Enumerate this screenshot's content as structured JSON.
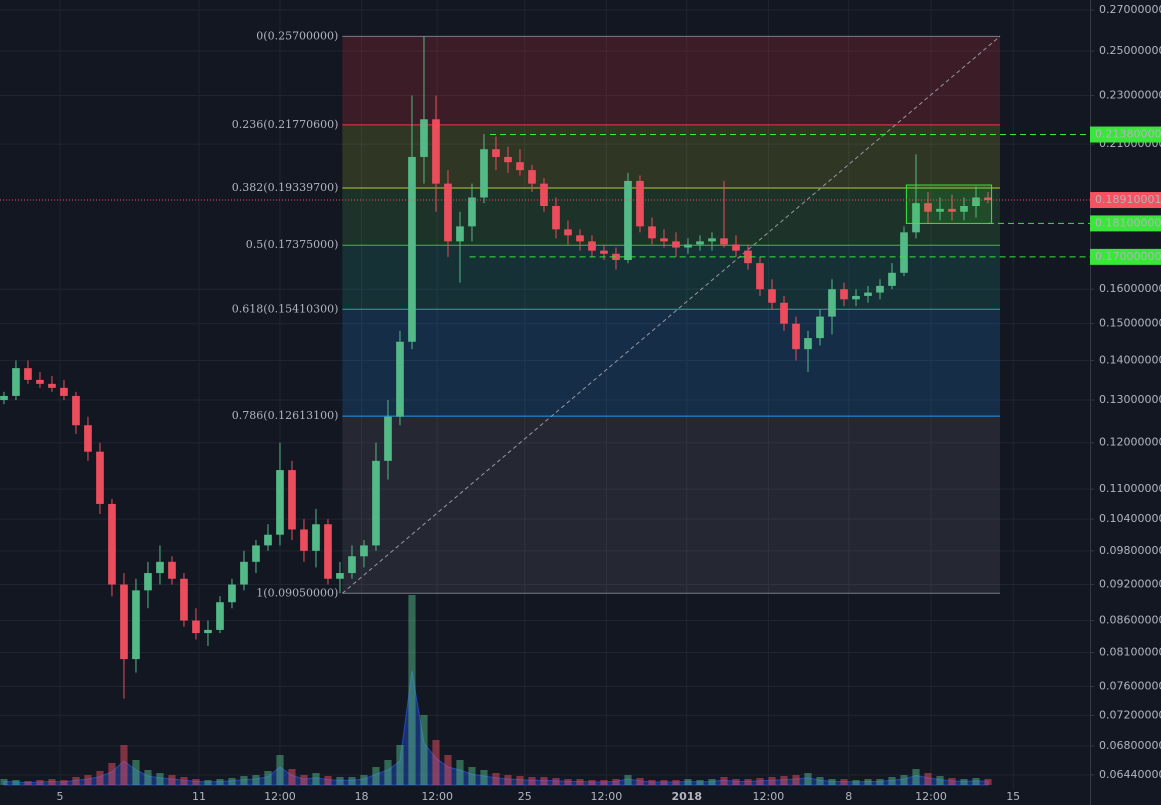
{
  "chart_data": {
    "type": "candlestick",
    "log_scale": true,
    "grid": true,
    "up_color": "#53b987",
    "down_color": "#eb4d5c",
    "ylim": [
      0.0626,
      0.2751
    ],
    "xlim": [
      -0.33,
      90.5
    ],
    "yticks": [
      {
        "value": 0.27,
        "label": "0.27000000"
      },
      {
        "value": 0.25,
        "label": "0.25000000"
      },
      {
        "value": 0.23,
        "label": "0.23000000"
      },
      {
        "value": 0.21,
        "label": "0.21000000"
      },
      {
        "value": 0.16,
        "label": "0.16000000"
      },
      {
        "value": 0.15,
        "label": "0.15000000"
      },
      {
        "value": 0.14,
        "label": "0.14000000"
      },
      {
        "value": 0.13,
        "label": "0.13000000"
      },
      {
        "value": 0.12,
        "label": "0.12000000"
      },
      {
        "value": 0.11,
        "label": "0.11000000"
      },
      {
        "value": 0.104,
        "label": "0.10400000"
      },
      {
        "value": 0.098,
        "label": "0.09800000"
      },
      {
        "value": 0.092,
        "label": "0.09200000"
      },
      {
        "value": 0.086,
        "label": "0.08600000"
      },
      {
        "value": 0.081,
        "label": "0.08100000"
      },
      {
        "value": 0.076,
        "label": "0.07600000"
      },
      {
        "value": 0.072,
        "label": "0.07200000"
      },
      {
        "value": 0.068,
        "label": "0.06800000"
      },
      {
        "value": 0.0644,
        "label": "0.06440000"
      }
    ],
    "xticks": [
      {
        "value": 4.67,
        "label": "5"
      },
      {
        "value": 16.25,
        "label": "11"
      },
      {
        "value": 23,
        "label": "12:00"
      },
      {
        "value": 29.8,
        "label": "18"
      },
      {
        "value": 36.1,
        "label": "12:00"
      },
      {
        "value": 43.4,
        "label": "25"
      },
      {
        "value": 50.2,
        "label": "12:00"
      },
      {
        "value": 56.9,
        "label": "2018",
        "bold": true
      },
      {
        "value": 63.7,
        "label": "12:00"
      },
      {
        "value": 70.4,
        "label": "8"
      },
      {
        "value": 77.25,
        "label": "12:00"
      },
      {
        "value": 84.1,
        "label": "15"
      }
    ],
    "open": [
      0.13,
      0.131,
      0.138,
      0.135,
      0.134,
      0.133,
      0.131,
      0.124,
      0.118,
      0.107,
      0.092,
      0.08,
      0.091,
      0.094,
      0.096,
      0.093,
      0.086,
      0.084,
      0.0845,
      0.089,
      0.092,
      0.096,
      0.099,
      0.101,
      0.114,
      0.102,
      0.098,
      0.103,
      0.093,
      0.094,
      0.097,
      0.099,
      0.116,
      0.126,
      0.145,
      0.205,
      0.22,
      0.195,
      0.175,
      0.18,
      0.19,
      0.208,
      0.205,
      0.203,
      0.2,
      0.195,
      0.187,
      0.179,
      0.177,
      0.175,
      0.172,
      0.171,
      0.169,
      0.196,
      0.18,
      0.176,
      0.175,
      0.173,
      0.174,
      0.175,
      0.176,
      0.174,
      0.172,
      0.168,
      0.16,
      0.156,
      0.15,
      0.143,
      0.146,
      0.152,
      0.16,
      0.157,
      0.158,
      0.159,
      0.161,
      0.165,
      0.178,
      0.188,
      0.185,
      0.186,
      0.185,
      0.187,
      0.19
    ],
    "high": [
      0.132,
      0.14,
      0.14,
      0.137,
      0.136,
      0.135,
      0.132,
      0.126,
      0.12,
      0.108,
      0.094,
      0.093,
      0.096,
      0.099,
      0.097,
      0.094,
      0.088,
      0.086,
      0.09,
      0.093,
      0.098,
      0.1,
      0.103,
      0.12,
      0.116,
      0.104,
      0.106,
      0.104,
      0.096,
      0.099,
      0.1,
      0.12,
      0.13,
      0.148,
      0.23,
      0.257,
      0.23,
      0.2,
      0.185,
      0.195,
      0.214,
      0.213,
      0.209,
      0.208,
      0.202,
      0.197,
      0.19,
      0.182,
      0.179,
      0.177,
      0.174,
      0.173,
      0.199,
      0.198,
      0.183,
      0.179,
      0.178,
      0.176,
      0.177,
      0.178,
      0.196,
      0.177,
      0.174,
      0.17,
      0.163,
      0.158,
      0.152,
      0.148,
      0.154,
      0.163,
      0.162,
      0.16,
      0.161,
      0.163,
      0.168,
      0.18,
      0.206,
      0.192,
      0.19,
      0.191,
      0.19,
      0.194,
      0.192
    ],
    "low": [
      0.129,
      0.13,
      0.134,
      0.133,
      0.132,
      0.13,
      0.122,
      0.116,
      0.105,
      0.09,
      0.0743,
      0.078,
      0.088,
      0.092,
      0.092,
      0.085,
      0.083,
      0.082,
      0.084,
      0.088,
      0.091,
      0.094,
      0.098,
      0.099,
      0.1,
      0.096,
      0.095,
      0.092,
      0.0905,
      0.093,
      0.095,
      0.098,
      0.112,
      0.124,
      0.143,
      0.195,
      0.185,
      0.17,
      0.162,
      0.175,
      0.188,
      0.2,
      0.199,
      0.198,
      0.192,
      0.185,
      0.176,
      0.174,
      0.172,
      0.17,
      0.169,
      0.166,
      0.168,
      0.178,
      0.174,
      0.173,
      0.17,
      0.171,
      0.172,
      0.172,
      0.173,
      0.17,
      0.166,
      0.158,
      0.154,
      0.148,
      0.14,
      0.137,
      0.144,
      0.147,
      0.155,
      0.155,
      0.156,
      0.157,
      0.16,
      0.164,
      0.176,
      0.181,
      0.182,
      0.182,
      0.182,
      0.183,
      0.188
    ],
    "close": [
      0.131,
      0.138,
      0.135,
      0.134,
      0.133,
      0.131,
      0.124,
      0.118,
      0.107,
      0.092,
      0.08,
      0.091,
      0.094,
      0.096,
      0.093,
      0.086,
      0.084,
      0.0845,
      0.089,
      0.092,
      0.096,
      0.099,
      0.101,
      0.114,
      0.102,
      0.098,
      0.103,
      0.093,
      0.094,
      0.097,
      0.099,
      0.116,
      0.126,
      0.145,
      0.205,
      0.22,
      0.195,
      0.175,
      0.18,
      0.19,
      0.208,
      0.205,
      0.203,
      0.2,
      0.195,
      0.187,
      0.179,
      0.177,
      0.175,
      0.172,
      0.171,
      0.169,
      0.196,
      0.18,
      0.176,
      0.175,
      0.173,
      0.174,
      0.175,
      0.176,
      0.174,
      0.172,
      0.168,
      0.16,
      0.156,
      0.15,
      0.143,
      0.146,
      0.152,
      0.16,
      0.157,
      0.158,
      0.159,
      0.161,
      0.165,
      0.178,
      0.188,
      0.185,
      0.186,
      0.185,
      0.187,
      0.19,
      0.1891
    ],
    "volume": [
      6,
      5,
      4,
      5,
      6,
      5,
      8,
      10,
      14,
      22,
      40,
      25,
      15,
      12,
      10,
      8,
      6,
      5,
      6,
      7,
      9,
      10,
      14,
      30,
      16,
      10,
      12,
      9,
      8,
      8,
      10,
      18,
      25,
      40,
      190,
      70,
      45,
      30,
      25,
      18,
      15,
      12,
      10,
      9,
      8,
      8,
      7,
      6,
      6,
      5,
      5,
      6,
      10,
      7,
      5,
      5,
      5,
      6,
      5,
      6,
      8,
      6,
      6,
      7,
      8,
      9,
      10,
      12,
      8,
      6,
      6,
      5,
      6,
      6,
      8,
      10,
      16,
      12,
      9,
      7,
      6,
      7,
      6
    ],
    "volume_lim": [
      0,
      200
    ],
    "fib": {
      "start": 28.2,
      "end": 83,
      "levels": [
        {
          "price": 0.257,
          "label": "0(0.25700000)",
          "color": "#787b86"
        },
        {
          "price": 0.217706,
          "label": "0.236(0.21770600)",
          "color": "#f23645"
        },
        {
          "price": 0.193397,
          "label": "0.382(0.19339700)",
          "color": "#b8c934"
        },
        {
          "price": 0.17375,
          "label": "0.5(0.17375000)",
          "color": "#4caf50"
        },
        {
          "price": 0.154103,
          "label": "0.618(0.15410300)",
          "color": "#22ab94"
        },
        {
          "price": 0.126131,
          "label": "0.786(0.12613100)",
          "color": "#2196f3"
        },
        {
          "price": 0.0905,
          "label": "1(0.09050000)",
          "color": "#787b86"
        }
      ]
    },
    "price_lines": [
      {
        "value": 0.2138,
        "label": "0.21380000",
        "start": 40.5,
        "color": "#39e639"
      },
      {
        "value": 0.181,
        "label": "0.18100000",
        "start": 82,
        "color": "#39e639"
      },
      {
        "value": 0.17,
        "label": "0.17000000",
        "start": 38.8,
        "color": "#39e639"
      }
    ],
    "last_price": {
      "value": 0.18910001,
      "label": "0.18910001",
      "color": "#f7525f"
    },
    "box": {
      "top": 0.1945,
      "bottom": 0.181,
      "start": 75.2,
      "end": 82.3,
      "color": "#39e639"
    }
  }
}
